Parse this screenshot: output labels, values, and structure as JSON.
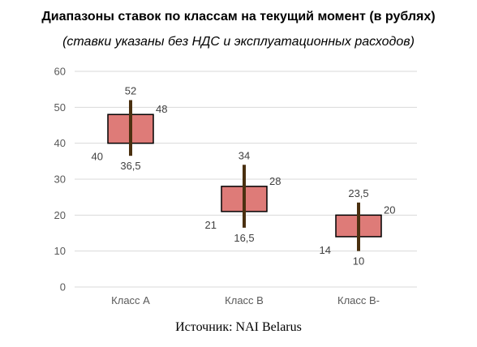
{
  "chart_data": {
    "type": "box",
    "title": "Диапазоны ставок по классам на текущий момент (в рублях)",
    "subtitle": "(ставки указаны без НДС и эксплуатационных расходов)",
    "source": "Источник: NAI Belarus",
    "ylim": [
      0,
      60
    ],
    "yticks": [
      "0",
      "10",
      "20",
      "30",
      "40",
      "50",
      "60"
    ],
    "yticks_values": [
      0,
      10,
      20,
      30,
      40,
      50,
      60
    ],
    "grid": true,
    "categories": [
      "Класс А",
      "Класс В",
      "Класс В-"
    ],
    "items": [
      {
        "low": 36.5,
        "high": 52,
        "box_low": 40,
        "box_high": 48,
        "labels": {
          "low": "36,5",
          "high": "52",
          "box_low": "40",
          "box_high": "48"
        }
      },
      {
        "low": 16.5,
        "high": 34,
        "box_low": 21,
        "box_high": 28,
        "labels": {
          "low": "16,5",
          "high": "34",
          "box_low": "21",
          "box_high": "28"
        }
      },
      {
        "low": 10,
        "high": 23.5,
        "box_low": 14,
        "box_high": 20,
        "labels": {
          "low": "10",
          "high": "23,5",
          "box_low": "14",
          "box_high": "20"
        }
      }
    ],
    "colors": {
      "box_fill": "#de7b78",
      "box_stroke": "#000000",
      "whisker": "#4a3010",
      "grid": "#d9d9d9"
    }
  }
}
